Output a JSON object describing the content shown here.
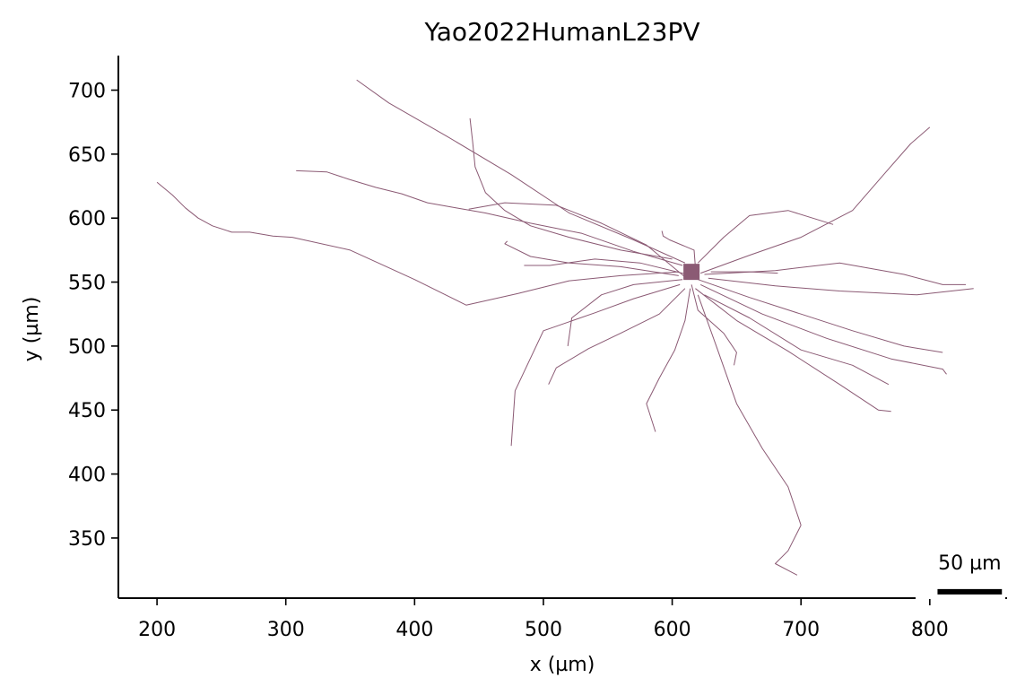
{
  "chart_data": {
    "type": "line",
    "title": "Yao2022HumanL23PV",
    "xlabel": "x (µm)",
    "ylabel": "y (µm)",
    "xlim": [
      170,
      860
    ],
    "ylim": [
      303,
      727
    ],
    "x_ticks": [
      200,
      300,
      400,
      500,
      600,
      700,
      800
    ],
    "y_ticks": [
      350,
      400,
      450,
      500,
      550,
      600,
      650,
      700
    ],
    "grid": false,
    "color": "#8b5a74",
    "soma": {
      "x": 615,
      "y": 558
    },
    "scale_bar": {
      "length": 50,
      "label": "50 µm",
      "x_start": 806,
      "y": 308
    },
    "series": [
      {
        "x": [
          610,
          570,
          520,
          475,
          425,
          380,
          355
        ],
        "y": [
          565,
          583,
          604,
          634,
          664,
          690,
          708
        ]
      },
      {
        "x": [
          600,
          560,
          520,
          490,
          470,
          455,
          447,
          445,
          443
        ],
        "y": [
          568,
          575,
          585,
          594,
          606,
          620,
          640,
          660,
          678
        ]
      },
      {
        "x": [
          608,
          570,
          530,
          490,
          455,
          432,
          410,
          390,
          370,
          350,
          332,
          308
        ],
        "y": [
          563,
          574,
          588,
          596,
          604,
          608,
          612,
          619,
          624,
          630,
          636,
          637
        ]
      },
      {
        "x": [
          605,
          560,
          520,
          480,
          440,
          400,
          350,
          305,
          290,
          272,
          258,
          243,
          232,
          222,
          212,
          200
        ],
        "y": [
          558,
          555,
          551,
          541,
          532,
          552,
          575,
          585,
          586,
          589,
          589,
          594,
          600,
          608,
          618,
          628
        ]
      },
      {
        "x": [
          620,
          640,
          660,
          690,
          725
        ],
        "y": [
          565,
          585,
          602,
          606,
          595
        ]
      },
      {
        "x": [
          622,
          660,
          700,
          740,
          765,
          785,
          800
        ],
        "y": [
          557,
          571,
          585,
          606,
          635,
          658,
          671
        ]
      },
      {
        "x": [
          625,
          680,
          730,
          780,
          810,
          828
        ],
        "y": [
          556,
          559,
          565,
          556,
          548,
          548
        ]
      },
      {
        "x": [
          628,
          680,
          730,
          790,
          834
        ],
        "y": [
          553,
          547,
          543,
          540,
          545
        ]
      },
      {
        "x": [
          620,
          660,
          700,
          740,
          780,
          810
        ],
        "y": [
          552,
          538,
          525,
          512,
          500,
          495
        ]
      },
      {
        "x": [
          622,
          670,
          720,
          770,
          810,
          813
        ],
        "y": [
          548,
          525,
          506,
          490,
          482,
          478
        ]
      },
      {
        "x": [
          618,
          650,
          690,
          730,
          760,
          770
        ],
        "y": [
          545,
          520,
          496,
          470,
          450,
          449
        ]
      },
      {
        "x": [
          625,
          660,
          700,
          740,
          768
        ],
        "y": [
          540,
          522,
          497,
          485,
          470
        ]
      },
      {
        "x": [
          615,
          620,
          640,
          650,
          648
        ],
        "y": [
          548,
          528,
          510,
          495,
          485
        ]
      },
      {
        "x": [
          614,
          610,
          602,
          590,
          580,
          587
        ],
        "y": [
          545,
          520,
          497,
          475,
          455,
          433
        ]
      },
      {
        "x": [
          620,
          635,
          650,
          670,
          690,
          700
        ],
        "y": [
          540,
          498,
          455,
          420,
          390,
          360
        ]
      },
      {
        "x": [
          700,
          690,
          680,
          697
        ],
        "y": [
          360,
          340,
          330,
          321
        ]
      },
      {
        "x": [
          610,
          590,
          560,
          535,
          510,
          504
        ],
        "y": [
          545,
          525,
          510,
          498,
          483,
          470
        ]
      },
      {
        "x": [
          606,
          570,
          540,
          500,
          478,
          475
        ],
        "y": [
          548,
          537,
          526,
          512,
          465,
          422
        ]
      },
      {
        "x": [
          608,
          570,
          545,
          522,
          519
        ],
        "y": [
          552,
          548,
          540,
          522,
          500
        ]
      },
      {
        "x": [
          605,
          560,
          520,
          490,
          470,
          472
        ],
        "y": [
          555,
          562,
          565,
          570,
          580,
          582
        ]
      },
      {
        "x": [
          610,
          580,
          545,
          510,
          470,
          442
        ],
        "y": [
          554,
          579,
          596,
          610,
          612,
          607
        ]
      },
      {
        "x": [
          612,
          575,
          540,
          505,
          485
        ],
        "y": [
          556,
          565,
          568,
          563,
          563
        ]
      },
      {
        "x": [
          618,
          617,
          598,
          593,
          592
        ],
        "y": [
          562,
          575,
          583,
          586,
          590
        ]
      },
      {
        "x": [
          630,
          660,
          682
        ],
        "y": [
          558,
          558,
          557
        ]
      }
    ]
  }
}
